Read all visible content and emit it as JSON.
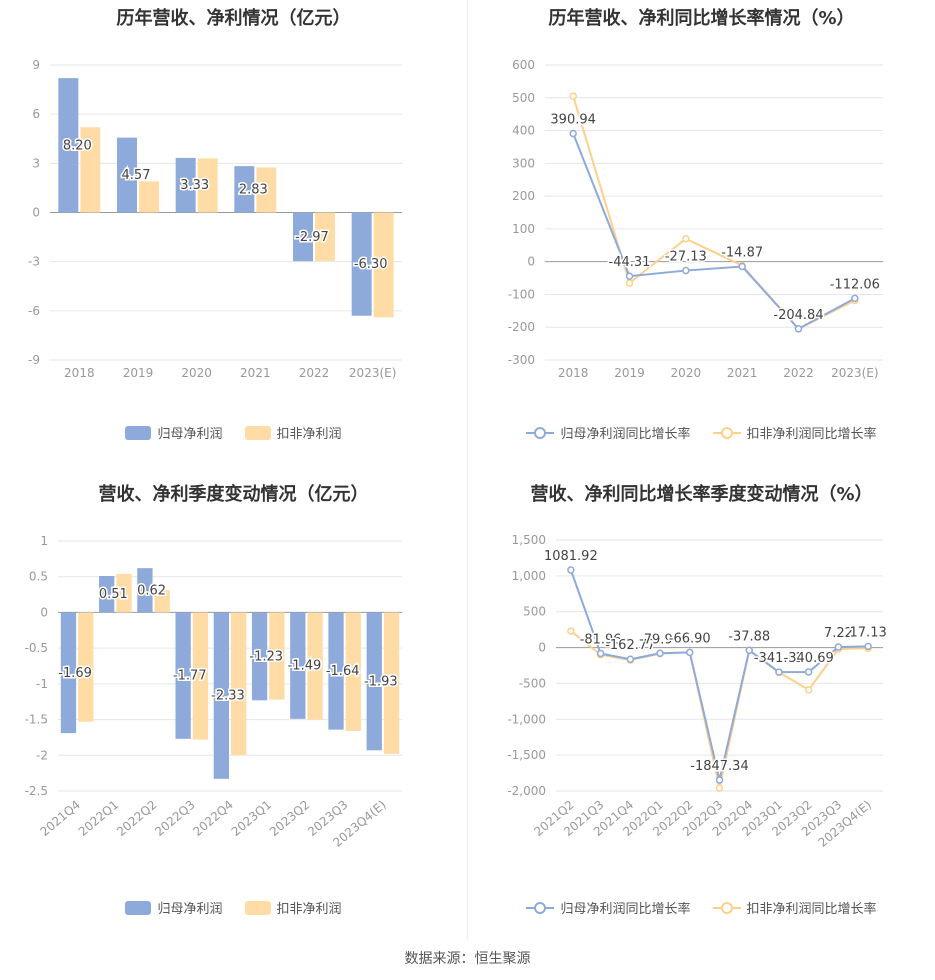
{
  "colors": {
    "series1": "#8eaadb",
    "series2": "#ffdca6",
    "line1": "#8eaadb",
    "line2": "#ffd08a"
  },
  "legend": {
    "bar_s1": "归母净利润",
    "bar_s2": "扣非净利润",
    "line_s1": "归母净利润同比增长率",
    "line_s2": "扣非净利润同比增长率"
  },
  "footer": "数据来源：恒生聚源",
  "chart_data": [
    {
      "type": "bar",
      "title": "历年营收、净利情况（亿元）",
      "categories": [
        "2018",
        "2019",
        "2020",
        "2021",
        "2022",
        "2023(E)"
      ],
      "series": [
        {
          "name": "归母净利润",
          "values": [
            8.2,
            4.57,
            3.33,
            2.83,
            -2.97,
            -6.3
          ]
        },
        {
          "name": "扣非净利润",
          "values": [
            5.2,
            1.9,
            3.3,
            2.75,
            -2.95,
            -6.4
          ]
        }
      ],
      "labels": [
        "8.20",
        "4.57",
        "3.33",
        "2.83",
        "-2.97",
        "-6.30"
      ],
      "ylim": [
        -9,
        9
      ],
      "yticks": [
        "9",
        "6",
        "3",
        "0",
        "-3",
        "-6",
        "-9"
      ],
      "legend_position": "bottom"
    },
    {
      "type": "line",
      "title": "历年营收、净利同比增长率情况（%）",
      "categories": [
        "2018",
        "2019",
        "2020",
        "2021",
        "2022",
        "2023(E)"
      ],
      "series": [
        {
          "name": "归母净利润同比增长率",
          "values": [
            390.94,
            -44.31,
            -27.13,
            -14.87,
            -204.84,
            -112.06
          ]
        },
        {
          "name": "扣非净利润同比增长率",
          "values": [
            505,
            -65,
            70,
            -12,
            -205,
            -118
          ]
        }
      ],
      "labels": [
        "390.94",
        "-44.31",
        "-27.13",
        "-14.87",
        "-204.84",
        "-112.06"
      ],
      "ylim": [
        -300,
        600
      ],
      "yticks": [
        "600",
        "500",
        "400",
        "300",
        "200",
        "100",
        "0",
        "-100",
        "-200",
        "-300"
      ],
      "legend_position": "bottom"
    },
    {
      "type": "bar",
      "title": "营收、净利季度变动情况（亿元）",
      "categories": [
        "2021Q4",
        "2022Q1",
        "2022Q2",
        "2022Q3",
        "2022Q4",
        "2023Q1",
        "2023Q2",
        "2023Q3",
        "2023Q4(E)"
      ],
      "series": [
        {
          "name": "归母净利润",
          "values": [
            -1.69,
            0.51,
            0.62,
            -1.77,
            -2.33,
            -1.23,
            -1.49,
            -1.64,
            -1.93
          ]
        },
        {
          "name": "扣非净利润",
          "values": [
            -1.53,
            0.54,
            0.31,
            -1.78,
            -2.0,
            -1.22,
            -1.5,
            -1.66,
            -1.98
          ]
        }
      ],
      "labels": [
        "-1.69",
        "0.51",
        "0.62",
        "-1.77",
        "-2.33",
        "-1.23",
        "-1.49",
        "-1.64",
        "-1.93"
      ],
      "ylim": [
        -2.5,
        1
      ],
      "yticks": [
        "1",
        "0.5",
        "0",
        "-0.5",
        "-1",
        "-1.5",
        "-2",
        "-2.5"
      ],
      "legend_position": "bottom"
    },
    {
      "type": "line",
      "title": "营收、净利同比增长率季度变动情况（%）",
      "categories": [
        "2021Q2",
        "2021Q3",
        "2021Q4",
        "2022Q1",
        "2022Q2",
        "2022Q3",
        "2022Q4",
        "2023Q1",
        "2023Q2",
        "2023Q3",
        "2023Q4(E)"
      ],
      "series": [
        {
          "name": "归母净利润同比增长率",
          "values": [
            1081.92,
            -81.96,
            -162.77,
            -79.98,
            -66.9,
            -1847.34,
            -37.88,
            -341.82,
            -340.69,
            7.22,
            17.13
          ]
        },
        {
          "name": "扣非净利润同比增长率",
          "values": [
            230,
            -100,
            -175,
            -85,
            -65,
            -1960,
            -40,
            -345,
            -590,
            -20,
            -10
          ]
        }
      ],
      "labels": [
        "1081.92",
        "-81.96",
        "-162.77",
        "-79.98",
        "-66.90",
        "-1847.34",
        "-37.88",
        "-341.82",
        "-340.69",
        "7.22",
        "17.13"
      ],
      "ylim": [
        -2000,
        1500
      ],
      "yticks": [
        "1,500",
        "1,000",
        "500",
        "0",
        "-500",
        "-1,000",
        "-1,500",
        "-2,000"
      ],
      "legend_position": "bottom"
    }
  ]
}
